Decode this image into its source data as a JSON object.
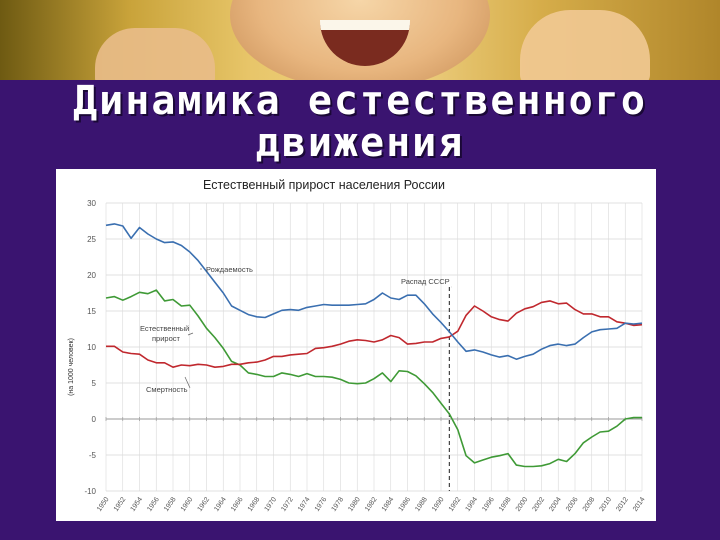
{
  "slide": {
    "title_line1": "Динамика естественного",
    "title_line2": "движения"
  },
  "chart_data": {
    "type": "line",
    "title": "Естественный прирост населения России",
    "ylabel": "(на 1000 человек)",
    "xlabel": "",
    "ylim": [
      -10,
      30
    ],
    "y_ticks": [
      30,
      25,
      20,
      15,
      10,
      5,
      0,
      -5,
      -10
    ],
    "x_ticks": [
      1950,
      1952,
      1954,
      1956,
      1958,
      1960,
      1962,
      1964,
      1966,
      1968,
      1970,
      1972,
      1974,
      1976,
      1978,
      1980,
      1982,
      1984,
      1986,
      1988,
      1990,
      1992,
      1994,
      1996,
      1998,
      2000,
      2002,
      2004,
      2006,
      2008,
      2010,
      2012,
      2014
    ],
    "xlim": [
      1950,
      2014
    ],
    "grid": true,
    "annotations": {
      "birth": "Рождаемость",
      "natural_line1": "Естественный",
      "natural_line2": "прирост",
      "death": "Смертность",
      "ussr": "Распад СССР"
    },
    "event_year": 1991,
    "colors": {
      "birth": "#3a6fb0",
      "death": "#c0282e",
      "natural": "#3f9a36",
      "grid": "#d9d9d9",
      "event": "#444444"
    },
    "x": [
      1950,
      1951,
      1952,
      1953,
      1954,
      1955,
      1956,
      1957,
      1958,
      1959,
      1960,
      1961,
      1962,
      1963,
      1964,
      1965,
      1966,
      1967,
      1968,
      1969,
      1970,
      1971,
      1972,
      1973,
      1974,
      1975,
      1976,
      1977,
      1978,
      1979,
      1980,
      1981,
      1982,
      1983,
      1984,
      1985,
      1986,
      1987,
      1988,
      1989,
      1990,
      1991,
      1992,
      1993,
      1994,
      1995,
      1996,
      1997,
      1998,
      1999,
      2000,
      2001,
      2002,
      2003,
      2004,
      2005,
      2006,
      2007,
      2008,
      2009,
      2010,
      2011,
      2012,
      2013,
      2014
    ],
    "series": [
      {
        "key": "birth",
        "values": [
          26.9,
          27.1,
          26.8,
          25.1,
          26.6,
          25.7,
          25.0,
          24.5,
          24.6,
          24.1,
          23.2,
          22.0,
          20.5,
          19.0,
          17.5,
          15.7,
          15.1,
          14.5,
          14.2,
          14.1,
          14.6,
          15.1,
          15.2,
          15.1,
          15.5,
          15.7,
          15.9,
          15.8,
          15.8,
          15.8,
          15.9,
          16.0,
          16.6,
          17.5,
          16.8,
          16.6,
          17.2,
          17.2,
          16.0,
          14.6,
          13.4,
          12.1,
          10.7,
          9.4,
          9.6,
          9.3,
          8.9,
          8.6,
          8.8,
          8.3,
          8.7,
          9.0,
          9.7,
          10.2,
          10.4,
          10.2,
          10.4,
          11.3,
          12.1,
          12.4,
          12.5,
          12.6,
          13.3,
          13.2,
          13.3
        ]
      },
      {
        "key": "death",
        "values": [
          10.1,
          10.1,
          9.3,
          9.1,
          9.0,
          8.2,
          7.8,
          7.8,
          7.2,
          7.5,
          7.4,
          7.6,
          7.5,
          7.2,
          7.3,
          7.6,
          7.6,
          7.8,
          7.9,
          8.2,
          8.7,
          8.7,
          8.9,
          9.0,
          9.1,
          9.8,
          9.9,
          10.1,
          10.4,
          10.8,
          11.0,
          10.9,
          10.7,
          11.0,
          11.6,
          11.3,
          10.4,
          10.5,
          10.7,
          10.7,
          11.2,
          11.4,
          12.2,
          14.4,
          15.7,
          15.0,
          14.2,
          13.8,
          13.6,
          14.7,
          15.3,
          15.6,
          16.2,
          16.4,
          16.0,
          16.1,
          15.2,
          14.6,
          14.6,
          14.2,
          14.2,
          13.5,
          13.3,
          13.0,
          13.1
        ]
      },
      {
        "key": "natural",
        "values": [
          16.8,
          17.0,
          16.5,
          17.0,
          17.6,
          17.4,
          17.9,
          16.4,
          16.6,
          15.7,
          15.8,
          14.3,
          12.6,
          11.3,
          9.8,
          8.0,
          7.5,
          6.4,
          6.2,
          5.9,
          5.9,
          6.4,
          6.2,
          5.9,
          6.3,
          5.9,
          5.9,
          5.8,
          5.5,
          5.0,
          4.9,
          5.0,
          5.6,
          6.4,
          5.2,
          6.7,
          6.6,
          6.0,
          4.9,
          3.7,
          2.2,
          0.7,
          -1.5,
          -5.1,
          -6.1,
          -5.7,
          -5.3,
          -5.1,
          -4.8,
          -6.4,
          -6.6,
          -6.6,
          -6.5,
          -6.2,
          -5.6,
          -5.9,
          -4.8,
          -3.3,
          -2.5,
          -1.8,
          -1.7,
          -1.0,
          0.0,
          0.2,
          0.2
        ]
      }
    ]
  }
}
